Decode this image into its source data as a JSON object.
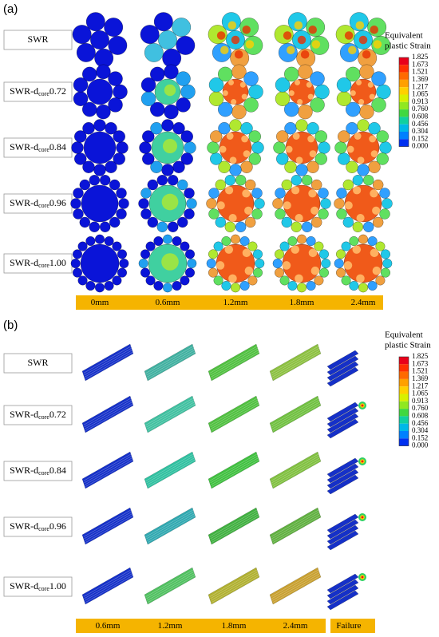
{
  "panel_a": {
    "label": "(a)",
    "rows": [
      {
        "text": "SWR"
      },
      {
        "prefix": "SWR-d",
        "sub": "core",
        "suffix": "0.72"
      },
      {
        "prefix": "SWR-d",
        "sub": "core",
        "suffix": "0.84"
      },
      {
        "prefix": "SWR-d",
        "sub": "core",
        "suffix": "0.96"
      },
      {
        "prefix": "SWR-d",
        "sub": "core",
        "suffix": "1.00"
      }
    ],
    "columns": [
      "0mm",
      "0.6mm",
      "1.2mm",
      "1.8mm",
      "2.4mm"
    ],
    "legend": {
      "title": [
        "Equivalent",
        "plastic Strain"
      ],
      "ticks": [
        "1.825",
        "1.673",
        "1.521",
        "1.369",
        "1.217",
        "1.065",
        "0.913",
        "0.760",
        "0.608",
        "0.456",
        "0.304",
        "0.152",
        "0.000"
      ]
    }
  },
  "panel_b": {
    "label": "(b)",
    "rows": [
      {
        "text": "SWR"
      },
      {
        "prefix": "SWR-d",
        "sub": "core",
        "suffix": "0.72"
      },
      {
        "prefix": "SWR-d",
        "sub": "core",
        "suffix": "0.84"
      },
      {
        "prefix": "SWR-d",
        "sub": "core",
        "suffix": "0.96"
      },
      {
        "prefix": "SWR-d",
        "sub": "core",
        "suffix": "1.00"
      }
    ],
    "columns": [
      "0.6mm",
      "1.2mm",
      "1.8mm",
      "2.4mm",
      "Failure"
    ],
    "legend": {
      "title": [
        "Equivalent",
        "plastic Strain"
      ],
      "ticks": [
        "1.825",
        "1.673",
        "1.521",
        "1.369",
        "1.217",
        "1.065",
        "0.913",
        "0.760",
        "0.608",
        "0.456",
        "0.304",
        "0.152",
        "0.000"
      ]
    }
  }
}
